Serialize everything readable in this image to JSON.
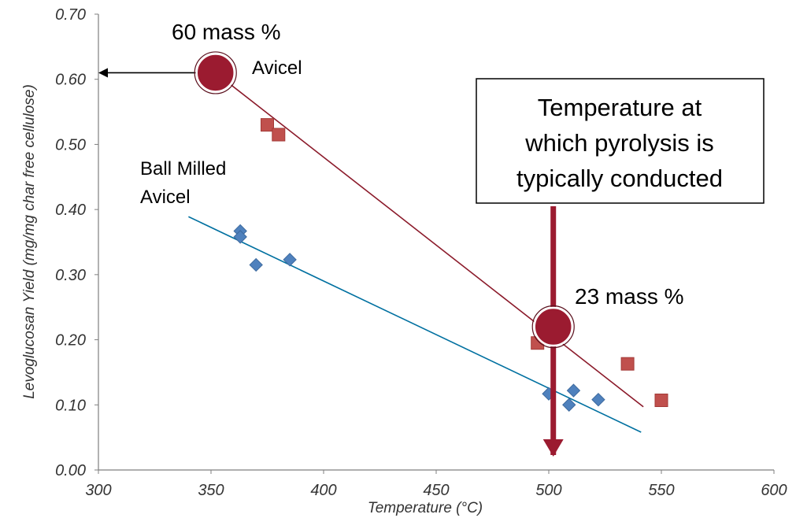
{
  "chart_data": {
    "type": "scatter",
    "title": "",
    "xlabel": "Temperature (°C)",
    "ylabel": "Levoglucosan Yield (mg/mg char free cellulose)",
    "xlim": [
      300,
      600
    ],
    "ylim": [
      0.0,
      0.7
    ],
    "x_ticks": [
      "300",
      "350",
      "400",
      "450",
      "500",
      "550",
      "600"
    ],
    "y_ticks": [
      "0.00",
      "0.10",
      "0.20",
      "0.30",
      "0.40",
      "0.50",
      "0.60",
      "0.70"
    ],
    "grid": false,
    "series": [
      {
        "name": "Avicel",
        "marker": "square",
        "color": "#c0504d",
        "points": [
          [
            375,
            0.53
          ],
          [
            380,
            0.515
          ],
          [
            495,
            0.195
          ],
          [
            535,
            0.163
          ],
          [
            550,
            0.107
          ]
        ],
        "trendline": [
          [
            352,
            0.61
          ],
          [
            542,
            0.097
          ]
        ],
        "trend_color": "#8b1a2a"
      },
      {
        "name": "Ball Milled Avicel",
        "marker": "diamond",
        "color": "#4f81bd",
        "points": [
          [
            363,
            0.367
          ],
          [
            363,
            0.358
          ],
          [
            370,
            0.315
          ],
          [
            385,
            0.323
          ],
          [
            500,
            0.117
          ],
          [
            509,
            0.1
          ],
          [
            511,
            0.122
          ],
          [
            522,
            0.108
          ]
        ],
        "trendline": [
          [
            340,
            0.389
          ],
          [
            541,
            0.058
          ]
        ],
        "trend_color": "#0070a0"
      }
    ]
  },
  "annotations": {
    "top_mass": "60 mass %",
    "top_label": "Avicel",
    "ball_label_line1": "Ball Milled",
    "ball_label_line2": "Avicel",
    "low_mass": "23 mass %",
    "box_line1": "Temperature at",
    "box_line2": "which pyrolysis is",
    "box_line3": "typically conducted"
  },
  "highlights": {
    "circle_color": "#9b1b30",
    "circle_points": [
      [
        352,
        0.61
      ],
      [
        502,
        0.22
      ]
    ],
    "arrow_y": 0.61,
    "arrow_x": 502
  }
}
